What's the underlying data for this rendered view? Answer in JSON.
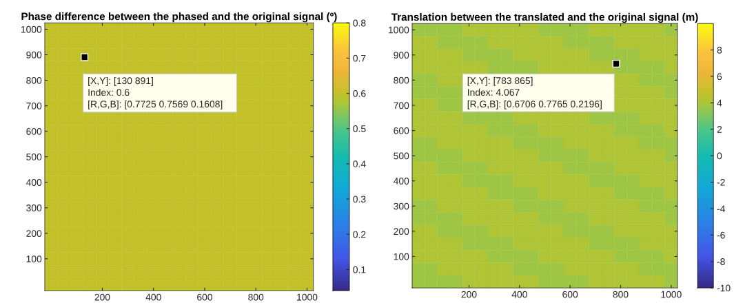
{
  "chart_data": [
    {
      "type": "heatmap",
      "title": "Phase difference between the phased and the original signal (º)",
      "categories": [
        null,
        null,
        null,
        null,
        "200",
        null,
        null,
        null,
        "400",
        null,
        null,
        null,
        "600",
        null,
        null,
        null,
        "800",
        null,
        null,
        null,
        "1000"
      ],
      "y_categories": [
        "1000",
        null,
        "900",
        null,
        "800",
        null,
        "700",
        null,
        "600",
        null,
        "500",
        null,
        "400",
        null,
        "300",
        null,
        "200",
        null,
        "100",
        null,
        null
      ],
      "cells": [
        [
          0.6,
          0.6,
          0.6,
          0.6,
          0.6,
          0.6,
          0.6,
          0.6,
          0.6,
          0.6,
          0.6,
          0.6,
          0.6,
          0.6,
          0.6,
          0.6,
          0.6,
          0.6,
          0.6,
          0.6,
          0.6
        ],
        [
          0.6,
          0.6,
          0.6,
          0.6,
          0.6,
          0.6,
          0.6,
          0.6,
          0.6,
          0.6,
          0.6,
          0.6,
          0.6,
          0.6,
          0.6,
          0.6,
          0.6,
          0.6,
          0.6,
          0.6,
          0.6
        ],
        [
          0.6,
          0.6,
          0.6,
          0.6,
          0.6,
          0.6,
          0.6,
          0.6,
          0.6,
          0.6,
          0.6,
          0.6,
          0.6,
          0.6,
          0.6,
          0.6,
          0.6,
          0.6,
          0.6,
          0.6,
          0.6
        ],
        [
          0.6,
          0.6,
          0.6,
          0.6,
          0.6,
          0.6,
          0.6,
          0.6,
          0.6,
          0.6,
          0.6,
          0.6,
          0.6,
          0.6,
          0.6,
          0.6,
          0.6,
          0.6,
          0.6,
          0.6,
          0.6
        ],
        [
          0.6,
          0.6,
          0.6,
          null,
          null,
          null,
          null,
          null,
          null,
          null,
          null,
          null,
          null,
          null,
          null,
          0.6,
          0.6,
          0.6,
          0.6,
          0.6,
          0.6
        ],
        [
          0.6,
          0.6,
          0.6,
          null,
          null,
          null,
          null,
          null,
          null,
          null,
          null,
          null,
          null,
          null,
          null,
          0.6,
          0.6,
          0.6,
          0.6,
          0.6,
          0.6
        ],
        [
          0.6,
          0.6,
          0.6,
          null,
          null,
          null,
          null,
          null,
          null,
          null,
          null,
          null,
          null,
          null,
          null,
          0.6,
          0.6,
          0.6,
          0.6,
          0.6,
          0.6
        ],
        [
          0.6,
          0.6,
          0.6,
          0.6,
          0.6,
          0.6,
          0.6,
          0.6,
          0.6,
          0.6,
          0.6,
          0.6,
          0.6,
          0.6,
          0.6,
          0.6,
          0.6,
          0.6,
          0.6,
          0.6,
          0.6
        ],
        [
          0.6,
          0.6,
          0.6,
          0.6,
          0.6,
          0.6,
          0.6,
          0.6,
          0.6,
          0.6,
          0.6,
          0.6,
          0.6,
          0.6,
          0.6,
          0.6,
          0.6,
          0.6,
          0.6,
          0.6,
          0.6
        ],
        [
          0.6,
          0.6,
          0.6,
          0.6,
          0.6,
          0.6,
          0.6,
          0.6,
          0.6,
          0.6,
          0.6,
          0.6,
          0.6,
          0.6,
          0.6,
          0.6,
          0.6,
          0.6,
          0.6,
          0.6,
          0.6
        ],
        [
          0.6,
          0.6,
          0.6,
          0.6,
          0.6,
          0.6,
          0.6,
          0.6,
          0.6,
          0.6,
          0.6,
          0.6,
          0.6,
          0.6,
          0.6,
          0.6,
          0.6,
          0.6,
          0.6,
          0.6,
          0.6
        ],
        [
          0.6,
          0.6,
          0.6,
          0.6,
          0.6,
          0.6,
          0.6,
          0.6,
          0.6,
          0.6,
          0.6,
          0.6,
          0.6,
          0.6,
          0.6,
          0.6,
          0.6,
          0.6,
          0.6,
          0.6,
          0.6
        ],
        [
          0.6,
          0.6,
          0.6,
          0.6,
          0.6,
          0.6,
          0.6,
          0.6,
          0.6,
          0.6,
          0.6,
          0.6,
          0.6,
          0.6,
          0.6,
          0.6,
          0.6,
          0.6,
          0.6,
          0.6,
          0.6
        ],
        [
          0.6,
          0.6,
          0.6,
          0.6,
          0.6,
          0.6,
          0.6,
          0.6,
          0.6,
          0.6,
          0.6,
          0.6,
          0.6,
          0.6,
          0.6,
          0.6,
          0.6,
          0.6,
          0.6,
          0.6,
          0.6
        ],
        [
          0.6,
          0.6,
          0.6,
          0.6,
          0.6,
          0.6,
          0.6,
          0.6,
          0.6,
          0.6,
          0.6,
          0.6,
          0.6,
          0.6,
          0.6,
          0.6,
          0.6,
          0.6,
          0.6,
          0.6,
          0.6
        ],
        [
          0.6,
          0.6,
          0.6,
          0.6,
          0.6,
          0.6,
          0.6,
          0.6,
          0.6,
          0.6,
          0.6,
          0.6,
          0.6,
          0.6,
          0.6,
          0.6,
          0.6,
          0.6,
          0.6,
          0.6,
          0.6
        ],
        [
          0.6,
          0.6,
          0.6,
          0.6,
          0.6,
          0.6,
          0.6,
          0.6,
          0.6,
          0.6,
          0.6,
          0.6,
          0.6,
          0.6,
          0.6,
          0.6,
          0.6,
          0.6,
          0.6,
          0.6,
          0.6
        ],
        [
          0.6,
          0.6,
          0.6,
          0.6,
          0.6,
          0.6,
          0.6,
          0.6,
          0.6,
          0.6,
          0.6,
          0.6,
          0.6,
          0.6,
          0.6,
          0.6,
          0.6,
          0.6,
          0.6,
          0.6,
          0.6
        ],
        [
          0.6,
          0.6,
          0.6,
          0.6,
          0.6,
          0.6,
          0.6,
          0.6,
          0.6,
          0.6,
          0.6,
          0.6,
          0.6,
          0.6,
          0.6,
          0.6,
          0.6,
          0.6,
          0.6,
          0.6,
          0.6
        ],
        [
          0.6,
          0.6,
          0.6,
          0.6,
          0.6,
          0.6,
          0.6,
          0.6,
          0.6,
          0.6,
          0.6,
          0.6,
          0.6,
          0.6,
          0.6,
          0.6,
          0.6,
          0.6,
          0.6,
          0.6,
          0.6
        ],
        [
          0.6,
          0.6,
          0.6,
          0.6,
          0.6,
          0.6,
          0.6,
          0.6,
          0.6,
          0.6,
          0.6,
          0.6,
          0.6,
          0.6,
          0.6,
          0.6,
          0.6,
          0.6,
          0.6,
          0.6,
          0.6
        ]
      ],
      "clim": [
        0.04,
        0.8
      ],
      "cticks": [
        0.1,
        0.2,
        0.3,
        0.4,
        0.5,
        0.6,
        0.7,
        0.8
      ],
      "grid": false,
      "annotations": [
        "[X,Y]: [130 891]\nIndex: 0.6\n[R,G,B]: [0.7725 0.7569 0.1608]"
      ]
    },
    {
      "type": "heatmap",
      "title": "Translation between the translated and the original signal (m)",
      "categories": [
        null,
        null,
        null,
        null,
        "200",
        null,
        null,
        null,
        "400",
        null,
        null,
        null,
        "600",
        null,
        null,
        null,
        "800",
        null,
        null,
        null,
        "1000"
      ],
      "y_categories": [
        "1000",
        null,
        "900",
        null,
        "800",
        null,
        "700",
        null,
        "600",
        null,
        "500",
        null,
        "400",
        null,
        "300",
        null,
        "200",
        null,
        "100",
        null,
        null
      ],
      "cells": [
        [
          3.7,
          3.7,
          3.7,
          3.7,
          4.067,
          4.067,
          4.067,
          4.067,
          4.067,
          4.067,
          3.7,
          3.7,
          3.7,
          3.7,
          4.067,
          4.067,
          4.067,
          4.067,
          4.067,
          4.067,
          3.7
        ],
        [
          4.067,
          4.067,
          3.7,
          3.7,
          3.7,
          3.7,
          4.067,
          4.067,
          4.067,
          4.067,
          4.067,
          4.067,
          3.7,
          3.7,
          3.7,
          3.7,
          4.067,
          4.067,
          4.067,
          4.067,
          4.067
        ],
        [
          4.067,
          4.067,
          4.067,
          4.067,
          3.7,
          3.7,
          3.7,
          3.7,
          4.067,
          4.067,
          4.067,
          4.067,
          4.067,
          4.067,
          3.7,
          3.7,
          3.7,
          3.7,
          4.067,
          4.067,
          4.067
        ],
        [
          4.067,
          4.067,
          4.067,
          4.067,
          4.067,
          4.067,
          3.7,
          3.7,
          3.7,
          3.7,
          4.067,
          4.067,
          4.067,
          4.067,
          4.067,
          4.067,
          3.7,
          3.7,
          3.7,
          3.7,
          4.067
        ],
        [
          3.7,
          3.7,
          4.067,
          4.067,
          null,
          null,
          null,
          null,
          null,
          null,
          null,
          null,
          null,
          null,
          null,
          null,
          4.067,
          4.067,
          3.7,
          3.7,
          3.7
        ],
        [
          3.7,
          3.7,
          3.7,
          3.7,
          null,
          null,
          null,
          null,
          null,
          null,
          null,
          null,
          null,
          null,
          null,
          null,
          4.067,
          4.067,
          4.067,
          4.067,
          3.7
        ],
        [
          4.067,
          4.067,
          3.7,
          3.7,
          null,
          null,
          null,
          null,
          null,
          null,
          null,
          null,
          null,
          null,
          null,
          null,
          4.067,
          4.067,
          4.067,
          4.067,
          4.067
        ],
        [
          4.067,
          4.067,
          4.067,
          4.067,
          3.7,
          3.7,
          3.7,
          3.7,
          4.067,
          4.067,
          4.067,
          4.067,
          4.067,
          4.067,
          3.7,
          3.7,
          3.7,
          3.7,
          4.067,
          4.067,
          4.067
        ],
        [
          4.067,
          4.067,
          4.067,
          4.067,
          4.067,
          4.067,
          3.7,
          3.7,
          3.7,
          3.7,
          4.067,
          4.067,
          4.067,
          4.067,
          4.067,
          4.067,
          3.7,
          3.7,
          3.7,
          3.7,
          4.067
        ],
        [
          3.7,
          3.7,
          4.067,
          4.067,
          4.067,
          4.067,
          4.067,
          4.067,
          3.7,
          3.7,
          3.7,
          3.7,
          4.067,
          4.067,
          4.067,
          4.067,
          4.067,
          4.067,
          3.7,
          3.7,
          3.7
        ],
        [
          3.7,
          3.7,
          3.7,
          3.7,
          4.067,
          4.067,
          4.067,
          4.067,
          4.067,
          4.067,
          3.7,
          3.7,
          3.7,
          3.7,
          4.067,
          4.067,
          4.067,
          4.067,
          4.067,
          4.067,
          3.7
        ],
        [
          4.067,
          4.067,
          3.7,
          3.7,
          3.7,
          3.7,
          4.067,
          4.067,
          4.067,
          4.067,
          4.067,
          4.067,
          3.7,
          3.7,
          3.7,
          3.7,
          4.067,
          4.067,
          4.067,
          4.067,
          4.067
        ],
        [
          4.067,
          4.067,
          4.067,
          4.067,
          3.7,
          3.7,
          3.7,
          3.7,
          4.067,
          4.067,
          4.067,
          4.067,
          4.067,
          4.067,
          3.7,
          3.7,
          3.7,
          3.7,
          4.067,
          4.067,
          4.067
        ],
        [
          4.067,
          4.067,
          4.067,
          4.067,
          4.067,
          4.067,
          3.7,
          3.7,
          3.7,
          3.7,
          4.067,
          4.067,
          4.067,
          4.067,
          4.067,
          4.067,
          3.7,
          3.7,
          3.7,
          3.7,
          4.067
        ],
        [
          3.7,
          3.7,
          4.067,
          4.067,
          4.067,
          4.067,
          4.067,
          4.067,
          3.7,
          3.7,
          3.7,
          3.7,
          4.067,
          4.067,
          4.067,
          4.067,
          4.067,
          4.067,
          3.7,
          3.7,
          3.7
        ],
        [
          3.7,
          3.7,
          3.7,
          3.7,
          4.067,
          4.067,
          4.067,
          4.067,
          4.067,
          4.067,
          3.7,
          3.7,
          3.7,
          3.7,
          4.067,
          4.067,
          4.067,
          4.067,
          4.067,
          4.067,
          3.7
        ],
        [
          4.067,
          4.067,
          3.7,
          3.7,
          3.7,
          3.7,
          4.067,
          4.067,
          4.067,
          4.067,
          4.067,
          4.067,
          3.7,
          3.7,
          3.7,
          3.7,
          4.067,
          4.067,
          4.067,
          4.067,
          4.067
        ],
        [
          4.067,
          4.067,
          4.067,
          4.067,
          3.7,
          3.7,
          3.7,
          3.7,
          4.067,
          4.067,
          4.067,
          4.067,
          4.067,
          4.067,
          3.7,
          3.7,
          3.7,
          3.7,
          4.067,
          4.067,
          4.067
        ],
        [
          4.067,
          4.067,
          4.067,
          4.067,
          4.067,
          4.067,
          3.7,
          3.7,
          3.7,
          3.7,
          4.067,
          4.067,
          4.067,
          4.067,
          4.067,
          4.067,
          3.7,
          3.7,
          3.7,
          3.7,
          4.067
        ],
        [
          3.7,
          3.7,
          4.067,
          4.067,
          4.067,
          4.067,
          4.067,
          4.067,
          3.7,
          3.7,
          3.7,
          3.7,
          4.067,
          4.067,
          4.067,
          4.067,
          4.067,
          4.067,
          3.7,
          3.7,
          3.7
        ],
        [
          3.7,
          3.7,
          3.7,
          3.7,
          4.067,
          4.067,
          4.067,
          4.067,
          4.067,
          4.067,
          3.7,
          3.7,
          3.7,
          3.7,
          4.067,
          4.067,
          4.067,
          4.067,
          4.067,
          4.067,
          3.7
        ]
      ],
      "clim": [
        -10,
        10
      ],
      "cticks": [
        -10,
        -8,
        -6,
        -4,
        -2,
        0,
        2,
        4,
        6,
        8
      ],
      "grid": false,
      "annotations": [
        "[X,Y]: [783 865]\nIndex: 4.067\n[R,G,B]: [0.6706 0.7765 0.2196]"
      ]
    }
  ]
}
